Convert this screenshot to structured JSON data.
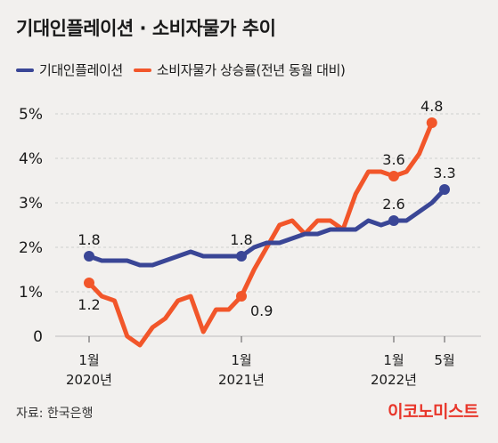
{
  "title": "기대인플레이션 · 소비자물가 추이",
  "source": "자료: 한국은행",
  "brand": "이코노미스트",
  "colors": {
    "blue": "#3a4696",
    "orange": "#f2562a"
  },
  "chart_data": {
    "type": "line",
    "title": "기대인플레이션 · 소비자물가 추이",
    "ylim": [
      0,
      5
    ],
    "yticks": [
      "0",
      "1%",
      "2%",
      "3%",
      "4%",
      "5%"
    ],
    "grid": true,
    "x_labels": [
      {
        "index": 0,
        "line1": "1월",
        "line2": "2020년"
      },
      {
        "index": 12,
        "line1": "1월",
        "line2": "2021년"
      },
      {
        "index": 24,
        "line1": "1월",
        "line2": "2022년"
      },
      {
        "index": 28,
        "line1": "5월",
        "line2": ""
      }
    ],
    "series": [
      {
        "name": "기대인플레이션",
        "values": [
          1.8,
          1.7,
          1.7,
          1.7,
          1.6,
          1.6,
          1.7,
          1.8,
          1.9,
          1.8,
          1.8,
          1.8,
          1.8,
          2.0,
          2.1,
          2.1,
          2.2,
          2.3,
          2.3,
          2.4,
          2.4,
          2.4,
          2.6,
          2.5,
          2.6,
          2.6,
          2.8,
          3.0,
          3.3
        ],
        "markers": [
          0,
          12,
          24,
          28
        ],
        "labels": [
          {
            "index": 0,
            "text": "1.8",
            "pos": "above"
          },
          {
            "index": 12,
            "text": "1.8",
            "pos": "above"
          },
          {
            "index": 24,
            "text": "2.6",
            "pos": "above"
          },
          {
            "index": 28,
            "text": "3.3",
            "pos": "above"
          }
        ]
      },
      {
        "name": "소비자물가 상승률(전년 동월 대비)",
        "values": [
          1.2,
          0.9,
          0.8,
          0.0,
          -0.2,
          0.2,
          0.4,
          0.8,
          0.9,
          0.1,
          0.6,
          0.6,
          0.9,
          1.5,
          2.0,
          2.5,
          2.6,
          2.3,
          2.6,
          2.6,
          2.4,
          3.2,
          3.7,
          3.7,
          3.6,
          3.7,
          4.1,
          4.8
        ],
        "markers": [
          0,
          12,
          24,
          27
        ],
        "labels": [
          {
            "index": 0,
            "text": "1.2",
            "pos": "below"
          },
          {
            "index": 12,
            "text": "0.9",
            "pos": "right"
          },
          {
            "index": 24,
            "text": "3.6",
            "pos": "above"
          },
          {
            "index": 27,
            "text": "4.8",
            "pos": "above"
          }
        ]
      }
    ]
  }
}
